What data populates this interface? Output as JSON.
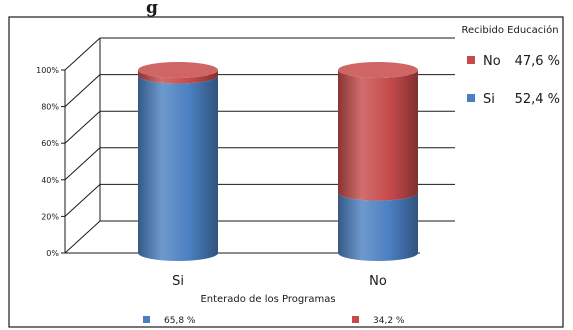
{
  "title_fragment": "g",
  "chart_data": {
    "type": "bar",
    "stacked": true,
    "three_d": true,
    "categories": [
      "Si",
      "No"
    ],
    "xlabel": "Enterado de los Programas",
    "ylim": [
      0,
      100
    ],
    "y_ticks": [
      "0%",
      "20%",
      "40%",
      "60%",
      "80%",
      "100%"
    ],
    "y_tick_values": [
      0,
      20,
      40,
      60,
      80,
      100
    ],
    "grid": true,
    "series": [
      {
        "name": "Si",
        "color": "#4a7fc1",
        "values": [
          97,
          33
        ]
      },
      {
        "name": "No",
        "color": "#c64a4a",
        "values": [
          3,
          67
        ]
      }
    ],
    "legend": {
      "title": "Recibido Educación",
      "placement": "top-right",
      "entries": [
        {
          "label": "No",
          "value": "47,6 %",
          "color": "#c64a4a"
        },
        {
          "label": "Si",
          "value": "52,4 %",
          "color": "#4a7fc1"
        }
      ]
    },
    "bottom_labels": [
      {
        "value": "65,8 %",
        "color": "#4a7fc1"
      },
      {
        "value": "34,2 %",
        "color": "#c64a4a"
      }
    ]
  }
}
